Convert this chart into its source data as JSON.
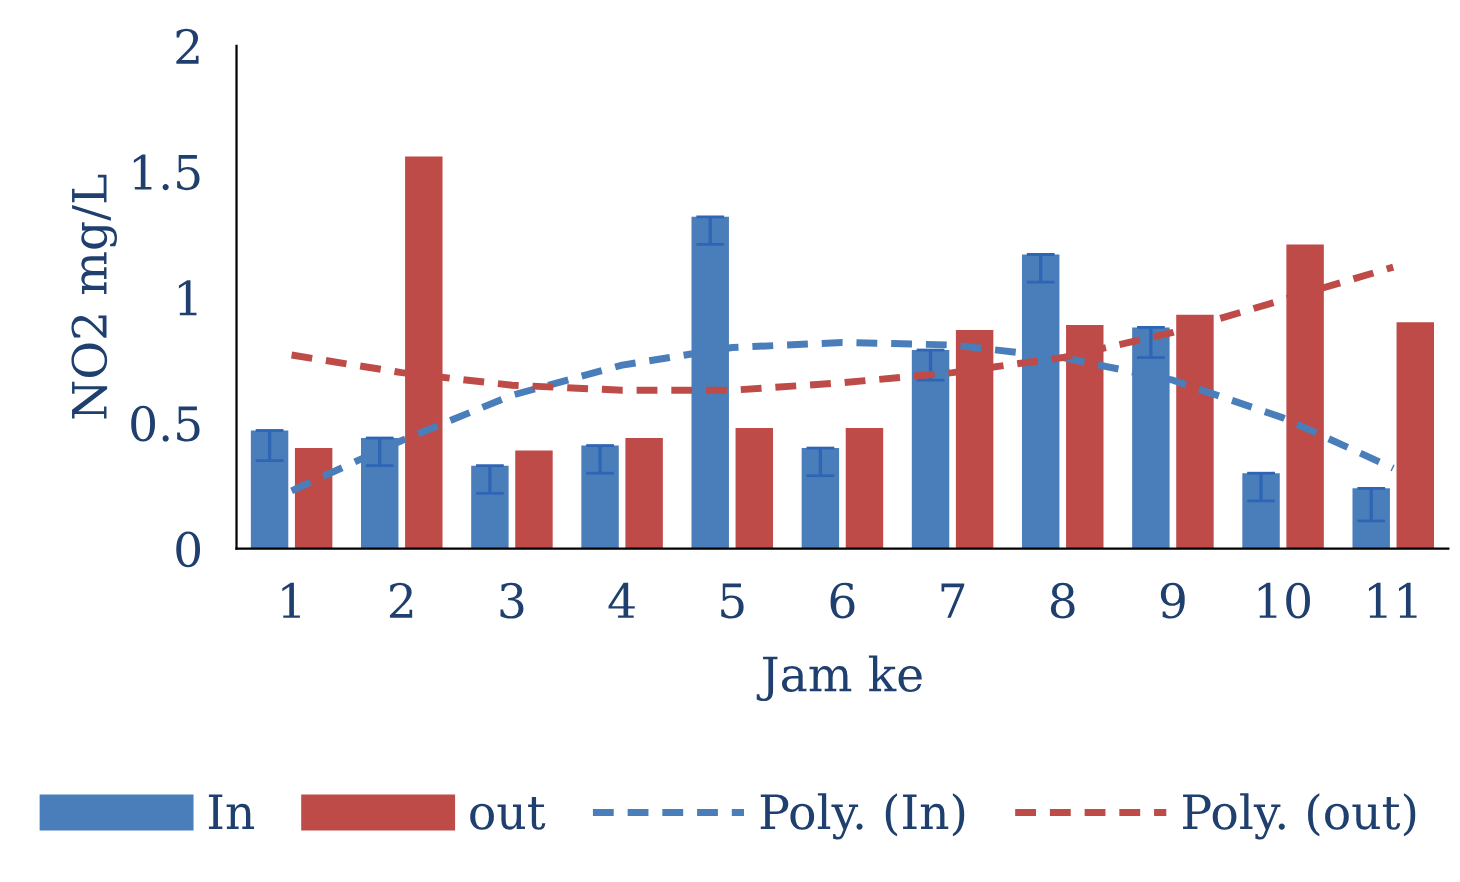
{
  "chart_data": {
    "type": "bar",
    "xlabel": "Jam ke",
    "ylabel": "NO2 mg/L",
    "categories": [
      "1",
      "2",
      "3",
      "4",
      "5",
      "6",
      "7",
      "8",
      "9",
      "10",
      "11"
    ],
    "series": [
      {
        "name": "In",
        "color": "#4a7ebb",
        "values": [
          0.47,
          0.44,
          0.33,
          0.41,
          1.32,
          0.4,
          0.79,
          1.17,
          0.88,
          0.3,
          0.24
        ],
        "errors": [
          [
            0.35,
            0.47
          ],
          [
            0.33,
            0.44
          ],
          [
            0.22,
            0.33
          ],
          [
            0.3,
            0.41
          ],
          [
            1.21,
            1.32
          ],
          [
            0.29,
            0.4
          ],
          [
            0.67,
            0.79
          ],
          [
            1.06,
            1.17
          ],
          [
            0.76,
            0.88
          ],
          [
            0.19,
            0.3
          ],
          [
            0.11,
            0.24
          ]
        ]
      },
      {
        "name": "out",
        "color": "#be4b48",
        "values": [
          0.4,
          1.56,
          0.39,
          0.44,
          0.48,
          0.48,
          0.87,
          0.89,
          0.93,
          1.21,
          0.9
        ]
      },
      {
        "name": "Poly. (In)",
        "type": "line",
        "line_style": "dashed",
        "color": "#4a7ebb",
        "values": [
          0.23,
          0.43,
          0.61,
          0.73,
          0.8,
          0.82,
          0.81,
          0.76,
          0.67,
          0.52,
          0.32
        ]
      },
      {
        "name": "Poly. (out)",
        "type": "line",
        "line_style": "dashed",
        "color": "#be4b48",
        "values": [
          0.77,
          0.7,
          0.65,
          0.63,
          0.63,
          0.66,
          0.7,
          0.76,
          0.86,
          0.99,
          1.12
        ]
      }
    ],
    "ylim": [
      0,
      2
    ],
    "yticks": [
      0,
      0.5,
      1,
      1.5,
      2
    ],
    "grid": false,
    "legend": "bottom"
  }
}
